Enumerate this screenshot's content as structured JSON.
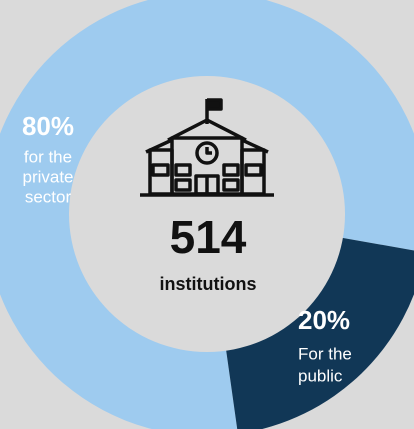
{
  "chart_data": {
    "type": "donut",
    "values": [
      80,
      20
    ],
    "value_labels": [
      "80%",
      "20%"
    ],
    "descriptions": [
      [
        "for the",
        "private",
        "sector"
      ],
      [
        "For the",
        "public"
      ]
    ],
    "colors": [
      "#9ecbef",
      "#113756"
    ],
    "center_value": 514,
    "center_label": "institutions"
  }
}
